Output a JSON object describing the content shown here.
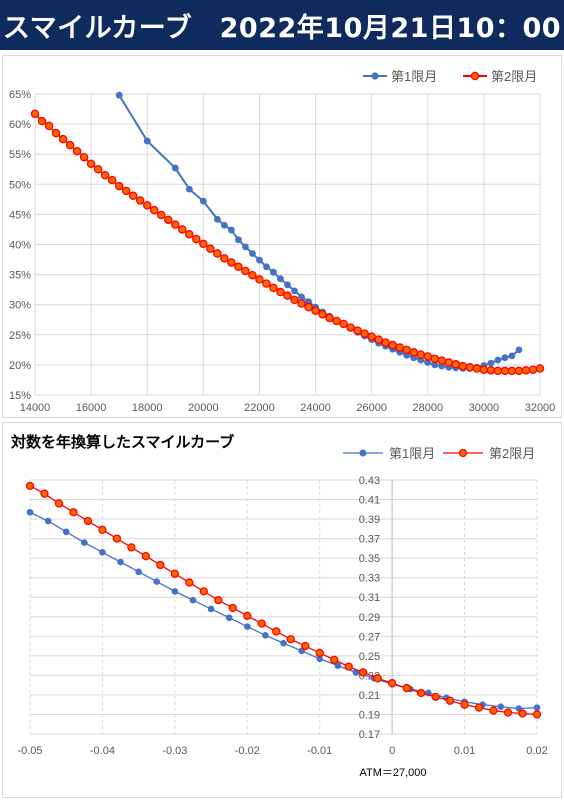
{
  "header": {
    "title": "スマイルカーブ　2022年10月21日10：00"
  },
  "colors": {
    "series1": "#4472c4",
    "series2": "#ff0000",
    "series2_fill": "#ff6a00",
    "header_bg": "#0f2a5c"
  },
  "chart_data": [
    {
      "type": "line",
      "title": "",
      "xlabel": "",
      "ylabel": "",
      "xlim": [
        14000,
        32000
      ],
      "ylim": [
        0.15,
        0.65
      ],
      "x_ticks": [
        14000,
        16000,
        18000,
        20000,
        22000,
        24000,
        26000,
        28000,
        30000,
        32000
      ],
      "y_ticks": [
        "15%",
        "20%",
        "25%",
        "30%",
        "35%",
        "40%",
        "45%",
        "50%",
        "55%",
        "60%",
        "65%"
      ],
      "legend_position": "top-right",
      "grid": true,
      "series": [
        {
          "name": "第1限月",
          "points": [
            [
              17000,
              0.648
            ],
            [
              18000,
              0.572
            ],
            [
              19000,
              0.527
            ],
            [
              19500,
              0.492
            ],
            [
              20000,
              0.472
            ],
            [
              20500,
              0.442
            ],
            [
              20750,
              0.432
            ],
            [
              21000,
              0.424
            ],
            [
              21250,
              0.408
            ],
            [
              21500,
              0.396
            ],
            [
              21750,
              0.385
            ],
            [
              22000,
              0.374
            ],
            [
              22250,
              0.363
            ],
            [
              22500,
              0.354
            ],
            [
              22750,
              0.343
            ],
            [
              23000,
              0.333
            ],
            [
              23250,
              0.323
            ],
            [
              23500,
              0.313
            ],
            [
              23750,
              0.305
            ],
            [
              24000,
              0.296
            ],
            [
              24250,
              0.288
            ],
            [
              24500,
              0.281
            ],
            [
              24750,
              0.274
            ],
            [
              25000,
              0.268
            ],
            [
              25250,
              0.261
            ],
            [
              25500,
              0.254
            ],
            [
              25750,
              0.248
            ],
            [
              26000,
              0.242
            ],
            [
              26250,
              0.236
            ],
            [
              26500,
              0.231
            ],
            [
              26750,
              0.226
            ],
            [
              27000,
              0.221
            ],
            [
              27250,
              0.216
            ],
            [
              27500,
              0.212
            ],
            [
              27750,
              0.208
            ],
            [
              28000,
              0.204
            ],
            [
              28250,
              0.2
            ],
            [
              28500,
              0.198
            ],
            [
              28750,
              0.196
            ],
            [
              29000,
              0.195
            ],
            [
              29250,
              0.194
            ],
            [
              29500,
              0.194
            ],
            [
              29750,
              0.196
            ],
            [
              30000,
              0.199
            ],
            [
              30250,
              0.203
            ],
            [
              30500,
              0.208
            ],
            [
              30750,
              0.212
            ],
            [
              31000,
              0.215
            ],
            [
              31250,
              0.225
            ]
          ]
        },
        {
          "name": "第2限月",
          "points": [
            [
              14000,
              0.617
            ],
            [
              14250,
              0.605
            ],
            [
              14500,
              0.597
            ],
            [
              14750,
              0.585
            ],
            [
              15000,
              0.575
            ],
            [
              15250,
              0.565
            ],
            [
              15500,
              0.555
            ],
            [
              15750,
              0.545
            ],
            [
              16000,
              0.534
            ],
            [
              16250,
              0.525
            ],
            [
              16500,
              0.515
            ],
            [
              16750,
              0.507
            ],
            [
              17000,
              0.497
            ],
            [
              17250,
              0.489
            ],
            [
              17500,
              0.481
            ],
            [
              17750,
              0.473
            ],
            [
              18000,
              0.465
            ],
            [
              18250,
              0.457
            ],
            [
              18500,
              0.449
            ],
            [
              18750,
              0.441
            ],
            [
              19000,
              0.433
            ],
            [
              19250,
              0.425
            ],
            [
              19500,
              0.417
            ],
            [
              19750,
              0.409
            ],
            [
              20000,
              0.401
            ],
            [
              20250,
              0.393
            ],
            [
              20500,
              0.385
            ],
            [
              20750,
              0.377
            ],
            [
              21000,
              0.37
            ],
            [
              21250,
              0.363
            ],
            [
              21500,
              0.356
            ],
            [
              21750,
              0.349
            ],
            [
              22000,
              0.342
            ],
            [
              22250,
              0.335
            ],
            [
              22500,
              0.328
            ],
            [
              22750,
              0.321
            ],
            [
              23000,
              0.315
            ],
            [
              23250,
              0.308
            ],
            [
              23500,
              0.302
            ],
            [
              23750,
              0.296
            ],
            [
              24000,
              0.29
            ],
            [
              24250,
              0.284
            ],
            [
              24500,
              0.278
            ],
            [
              24750,
              0.273
            ],
            [
              25000,
              0.268
            ],
            [
              25250,
              0.262
            ],
            [
              25500,
              0.257
            ],
            [
              25750,
              0.252
            ],
            [
              26000,
              0.247
            ],
            [
              26250,
              0.242
            ],
            [
              26500,
              0.237
            ],
            [
              26750,
              0.233
            ],
            [
              27000,
              0.229
            ],
            [
              27250,
              0.225
            ],
            [
              27500,
              0.221
            ],
            [
              27750,
              0.217
            ],
            [
              28000,
              0.214
            ],
            [
              28250,
              0.21
            ],
            [
              28500,
              0.207
            ],
            [
              28750,
              0.204
            ],
            [
              29000,
              0.201
            ],
            [
              29250,
              0.198
            ],
            [
              29500,
              0.196
            ],
            [
              29750,
              0.194
            ],
            [
              30000,
              0.192
            ],
            [
              30250,
              0.191
            ],
            [
              30500,
              0.19
            ],
            [
              30750,
              0.19
            ],
            [
              31000,
              0.19
            ],
            [
              31250,
              0.19
            ],
            [
              31500,
              0.191
            ],
            [
              31750,
              0.192
            ],
            [
              32000,
              0.194
            ]
          ]
        }
      ]
    },
    {
      "type": "line",
      "title": "対数を年換算したスマイルカーブ",
      "xlabel": "",
      "ylabel": "",
      "xlim": [
        -0.05,
        0.02
      ],
      "ylim": [
        0.17,
        0.43
      ],
      "x_ticks": [
        "-0.05",
        "-0.04",
        "-0.03",
        "-0.02",
        "-0.01",
        "0",
        "0.01",
        "0.02"
      ],
      "y_ticks": [
        "0.17",
        "0.19",
        "0.21",
        "0.23",
        "0.25",
        "0.27",
        "0.29",
        "0.31",
        "0.33",
        "0.35",
        "0.37",
        "0.39",
        "0.41",
        "0.43"
      ],
      "legend_position": "top-right",
      "annotation": "ATM＝27,000",
      "grid": true,
      "series": [
        {
          "name": "第1限月",
          "points": [
            [
              -0.05,
              0.397
            ],
            [
              -0.0475,
              0.388
            ],
            [
              -0.045,
              0.377
            ],
            [
              -0.0425,
              0.366
            ],
            [
              -0.04,
              0.356
            ],
            [
              -0.0375,
              0.346
            ],
            [
              -0.035,
              0.336
            ],
            [
              -0.0325,
              0.326
            ],
            [
              -0.03,
              0.316
            ],
            [
              -0.0275,
              0.307
            ],
            [
              -0.025,
              0.298
            ],
            [
              -0.0225,
              0.289
            ],
            [
              -0.02,
              0.28
            ],
            [
              -0.0175,
              0.271
            ],
            [
              -0.015,
              0.263
            ],
            [
              -0.0125,
              0.255
            ],
            [
              -0.01,
              0.247
            ],
            [
              -0.0075,
              0.24
            ],
            [
              -0.005,
              0.233
            ],
            [
              -0.0025,
              0.227
            ],
            [
              0.0,
              0.221
            ],
            [
              0.0025,
              0.216
            ],
            [
              0.005,
              0.212
            ],
            [
              0.0075,
              0.207
            ],
            [
              0.01,
              0.203
            ],
            [
              0.0125,
              0.2
            ],
            [
              0.015,
              0.198
            ],
            [
              0.0175,
              0.196
            ],
            [
              0.02,
              0.197
            ]
          ]
        },
        {
          "name": "第2限月",
          "points": [
            [
              -0.05,
              0.424
            ],
            [
              -0.048,
              0.416
            ],
            [
              -0.046,
              0.406
            ],
            [
              -0.044,
              0.397
            ],
            [
              -0.042,
              0.388
            ],
            [
              -0.04,
              0.379
            ],
            [
              -0.038,
              0.37
            ],
            [
              -0.036,
              0.361
            ],
            [
              -0.034,
              0.352
            ],
            [
              -0.032,
              0.343
            ],
            [
              -0.03,
              0.334
            ],
            [
              -0.028,
              0.325
            ],
            [
              -0.026,
              0.316
            ],
            [
              -0.024,
              0.307
            ],
            [
              -0.022,
              0.299
            ],
            [
              -0.02,
              0.291
            ],
            [
              -0.018,
              0.283
            ],
            [
              -0.016,
              0.275
            ],
            [
              -0.014,
              0.267
            ],
            [
              -0.012,
              0.26
            ],
            [
              -0.01,
              0.253
            ],
            [
              -0.008,
              0.246
            ],
            [
              -0.006,
              0.239
            ],
            [
              -0.004,
              0.233
            ],
            [
              -0.002,
              0.227
            ],
            [
              0.0,
              0.222
            ],
            [
              0.002,
              0.217
            ],
            [
              0.004,
              0.212
            ],
            [
              0.006,
              0.208
            ],
            [
              0.008,
              0.204
            ],
            [
              0.01,
              0.2
            ],
            [
              0.012,
              0.197
            ],
            [
              0.014,
              0.194
            ],
            [
              0.016,
              0.192
            ],
            [
              0.018,
              0.191
            ],
            [
              0.02,
              0.19
            ]
          ]
        }
      ]
    }
  ]
}
